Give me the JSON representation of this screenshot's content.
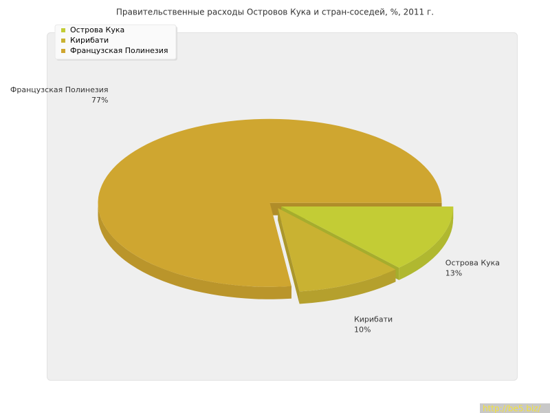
{
  "chart_data": {
    "type": "pie",
    "title": "Правительственные расходы Островов Кука и стран-соседей, %, 2011 г.",
    "categories": [
      "Острова Кука",
      "Кирибати",
      "Французская Полинезия"
    ],
    "values": [
      13,
      10,
      77
    ],
    "value_labels": [
      "13%",
      "10%",
      "77%"
    ],
    "colors": [
      "#c3cc35",
      "#c9b232",
      "#cfa630"
    ],
    "legend": "top-left"
  },
  "watermark": "http://be5.biz/"
}
